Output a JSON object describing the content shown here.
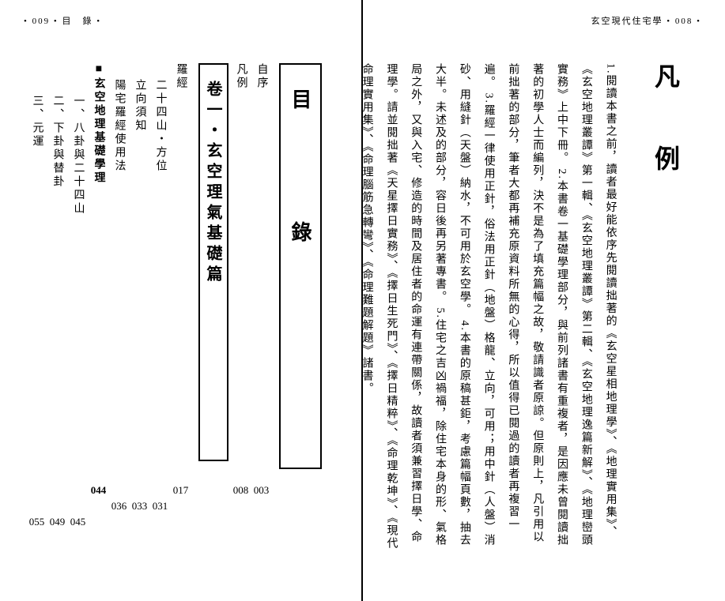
{
  "header_left": "• 009 • 目　錄 •",
  "header_right": "玄空現代住宅學 • 008 •",
  "hanrei_title": "凡　例",
  "hanrei_body": "1.閱讀本書之前，讀者最好能依序先閱讀拙著的《玄空星相地理學》、《地理實用集》、《玄空地理叢譚》第一輯、《玄空地理叢譚》第二輯、《玄空地理逸篇新解》、《地理巒頭實務》上中下冊。\n2.本書卷一基礎學理部分，與前列諸書有重複者，是因應未曾閱讀拙著的初學人士而編列，決不是為了填充篇幅之故，敬請識者原諒。但原則上，凡引用以前拙著的部分，筆者大都再補充原資料所無的心得，所以值得已閱過的讀者再複習一遍。\n3.羅經一律使用正針，俗法用正針（地盤）格龍、立向，可用；用中針（人盤）消砂、用縫針（天盤）納水，不可用於玄空學。\n4.本書的原稿甚鉅，考慮篇幅頁數，抽去大半。未述及的部分，容日後再另著專書。\n5.住宅之吉凶禍福，除住宅本身的形、氣格局之外，又與入宅、修造的時間及居住者的命運有連帶關係，故讀者須兼習擇日學、命理學。請並閱拙著《天星擇日實務》、《擇日生死門》、《擇日精粹》、《命理乾坤》、《現代命理實用集》、《命理腦筋急轉彎》、《命理難題解題》諸書。",
  "mokuroku_title": "目　　錄",
  "chapter_title": "卷一・玄空理氣基礎篇",
  "toc": [
    {
      "label": "自序",
      "page": "003",
      "indent": 0
    },
    {
      "label": "凡例",
      "page": "008",
      "indent": 0
    },
    {
      "label": "羅經",
      "page": "017",
      "indent": 0
    },
    {
      "label": "二十四山・方位",
      "page": "031",
      "indent": 1
    },
    {
      "label": "立向須知",
      "page": "033",
      "indent": 1
    },
    {
      "label": "陽宅羅經使用法",
      "page": "036",
      "indent": 1
    },
    {
      "label": "■玄空地理基礎學理",
      "page": "044",
      "indent": 0,
      "bold": true
    },
    {
      "label": "一、八卦與二十四山",
      "page": "045",
      "indent": 2
    },
    {
      "label": "二、下卦與替卦",
      "page": "049",
      "indent": 2
    },
    {
      "label": "三、元運",
      "page": "055",
      "indent": 2
    }
  ]
}
